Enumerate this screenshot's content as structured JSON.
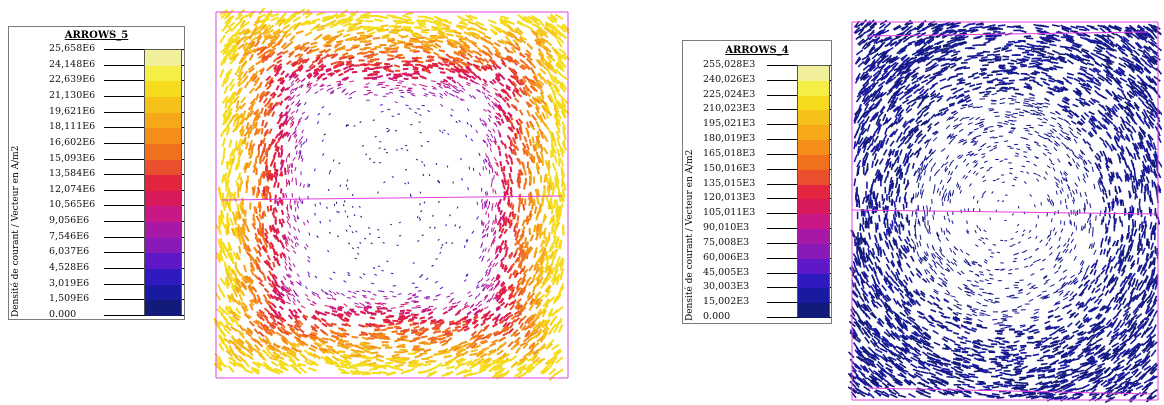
{
  "left_panel": {
    "legend_title": "ARROWS_5",
    "axis_label": "Densité de courant / Vecteur en A/m2",
    "tick_labels": [
      "25,658E6",
      "24,148E6",
      "22,639E6",
      "21,130E6",
      "19,621E6",
      "18,111E6",
      "16,602E6",
      "15,093E6",
      "13,584E6",
      "12,074E6",
      "10,565E6",
      "9,056E6",
      "7,546E6",
      "6,037E6",
      "4,528E6",
      "3,019E6",
      "1,509E6",
      "0.000"
    ]
  },
  "right_panel": {
    "legend_title": "ARROWS_4",
    "axis_label": "Densité de courant / Vecteur en A/m2",
    "tick_labels": [
      "255,028E3",
      "240,026E3",
      "225,024E3",
      "210,023E3",
      "195,021E3",
      "180,019E3",
      "165,018E3",
      "150,016E3",
      "135,015E3",
      "120,013E3",
      "105,011E3",
      "90,010E3",
      "75,008E3",
      "60,006E3",
      "45,005E3",
      "30,003E3",
      "15,002E3",
      "0.000"
    ]
  },
  "colors": {
    "scale": [
      "#f2ef9a",
      "#f5ee44",
      "#f5dc1c",
      "#f6c21a",
      "#f5a818",
      "#f48e19",
      "#f1701d",
      "#ea4f2e",
      "#e2243f",
      "#d81a5c",
      "#c81885",
      "#a818a6",
      "#8a1ab8",
      "#5e18c8",
      "#2f1ac0",
      "#1a1aa0",
      "#121a7a"
    ],
    "frame": "#e040e0"
  }
}
